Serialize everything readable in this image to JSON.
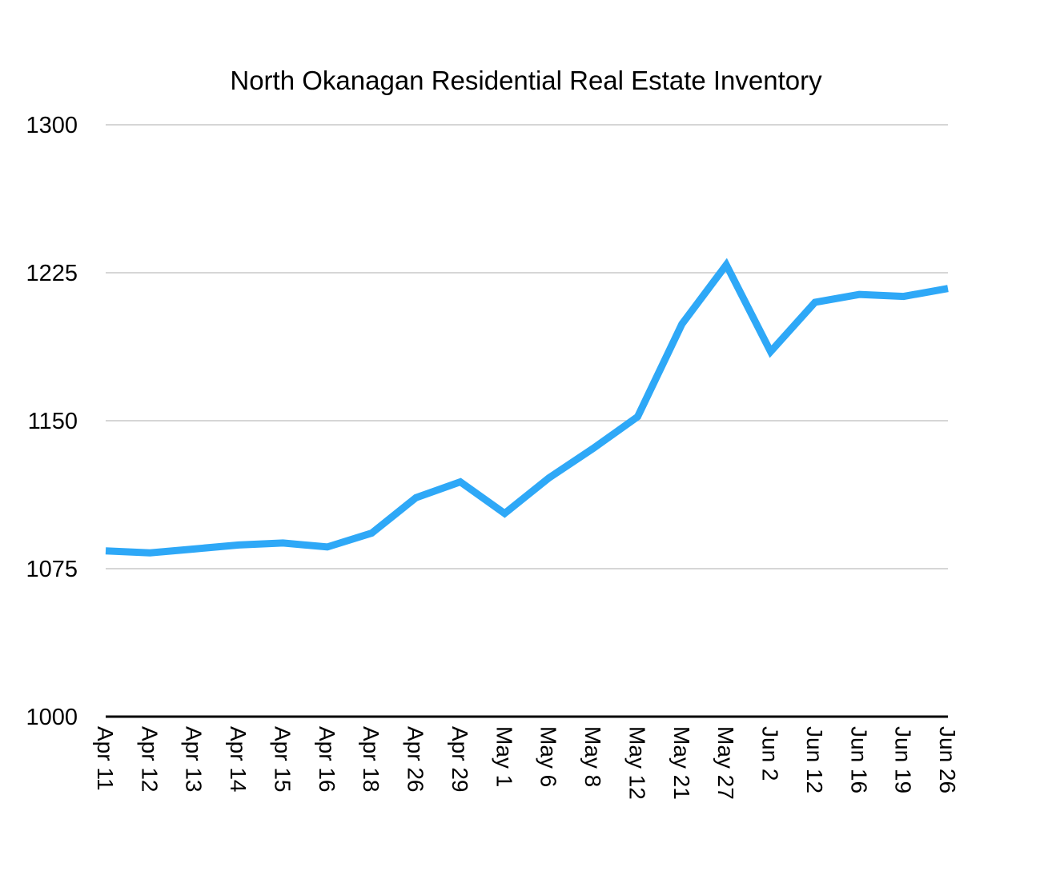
{
  "chart_data": {
    "type": "line",
    "title": "North Okanagan Residential Real Estate Inventory",
    "xlabel": "",
    "ylabel": "",
    "categories": [
      "Apr 11",
      "Apr 12",
      "Apr 13",
      "Apr 14",
      "Apr 15",
      "Apr 16",
      "Apr 18",
      "Apr 26",
      "Apr 29",
      "May 1",
      "May 6",
      "May 8",
      "May 12",
      "May 21",
      "May 27",
      "Jun 2",
      "Jun 12",
      "Jun 16",
      "Jun 19",
      "Jun 26"
    ],
    "series": [
      {
        "values": [
          1084,
          1083,
          1085,
          1087,
          1088,
          1086,
          1093,
          1111,
          1119,
          1103,
          1121,
          1136,
          1152,
          1199,
          1229,
          1185,
          1210,
          1214,
          1213,
          1217
        ],
        "color": "#2ea8f7"
      }
    ],
    "ylim": [
      1000,
      1300
    ],
    "yticks": [
      "1000",
      "1075",
      "1150",
      "1225",
      "1300"
    ],
    "grid": true,
    "legend": "none"
  }
}
